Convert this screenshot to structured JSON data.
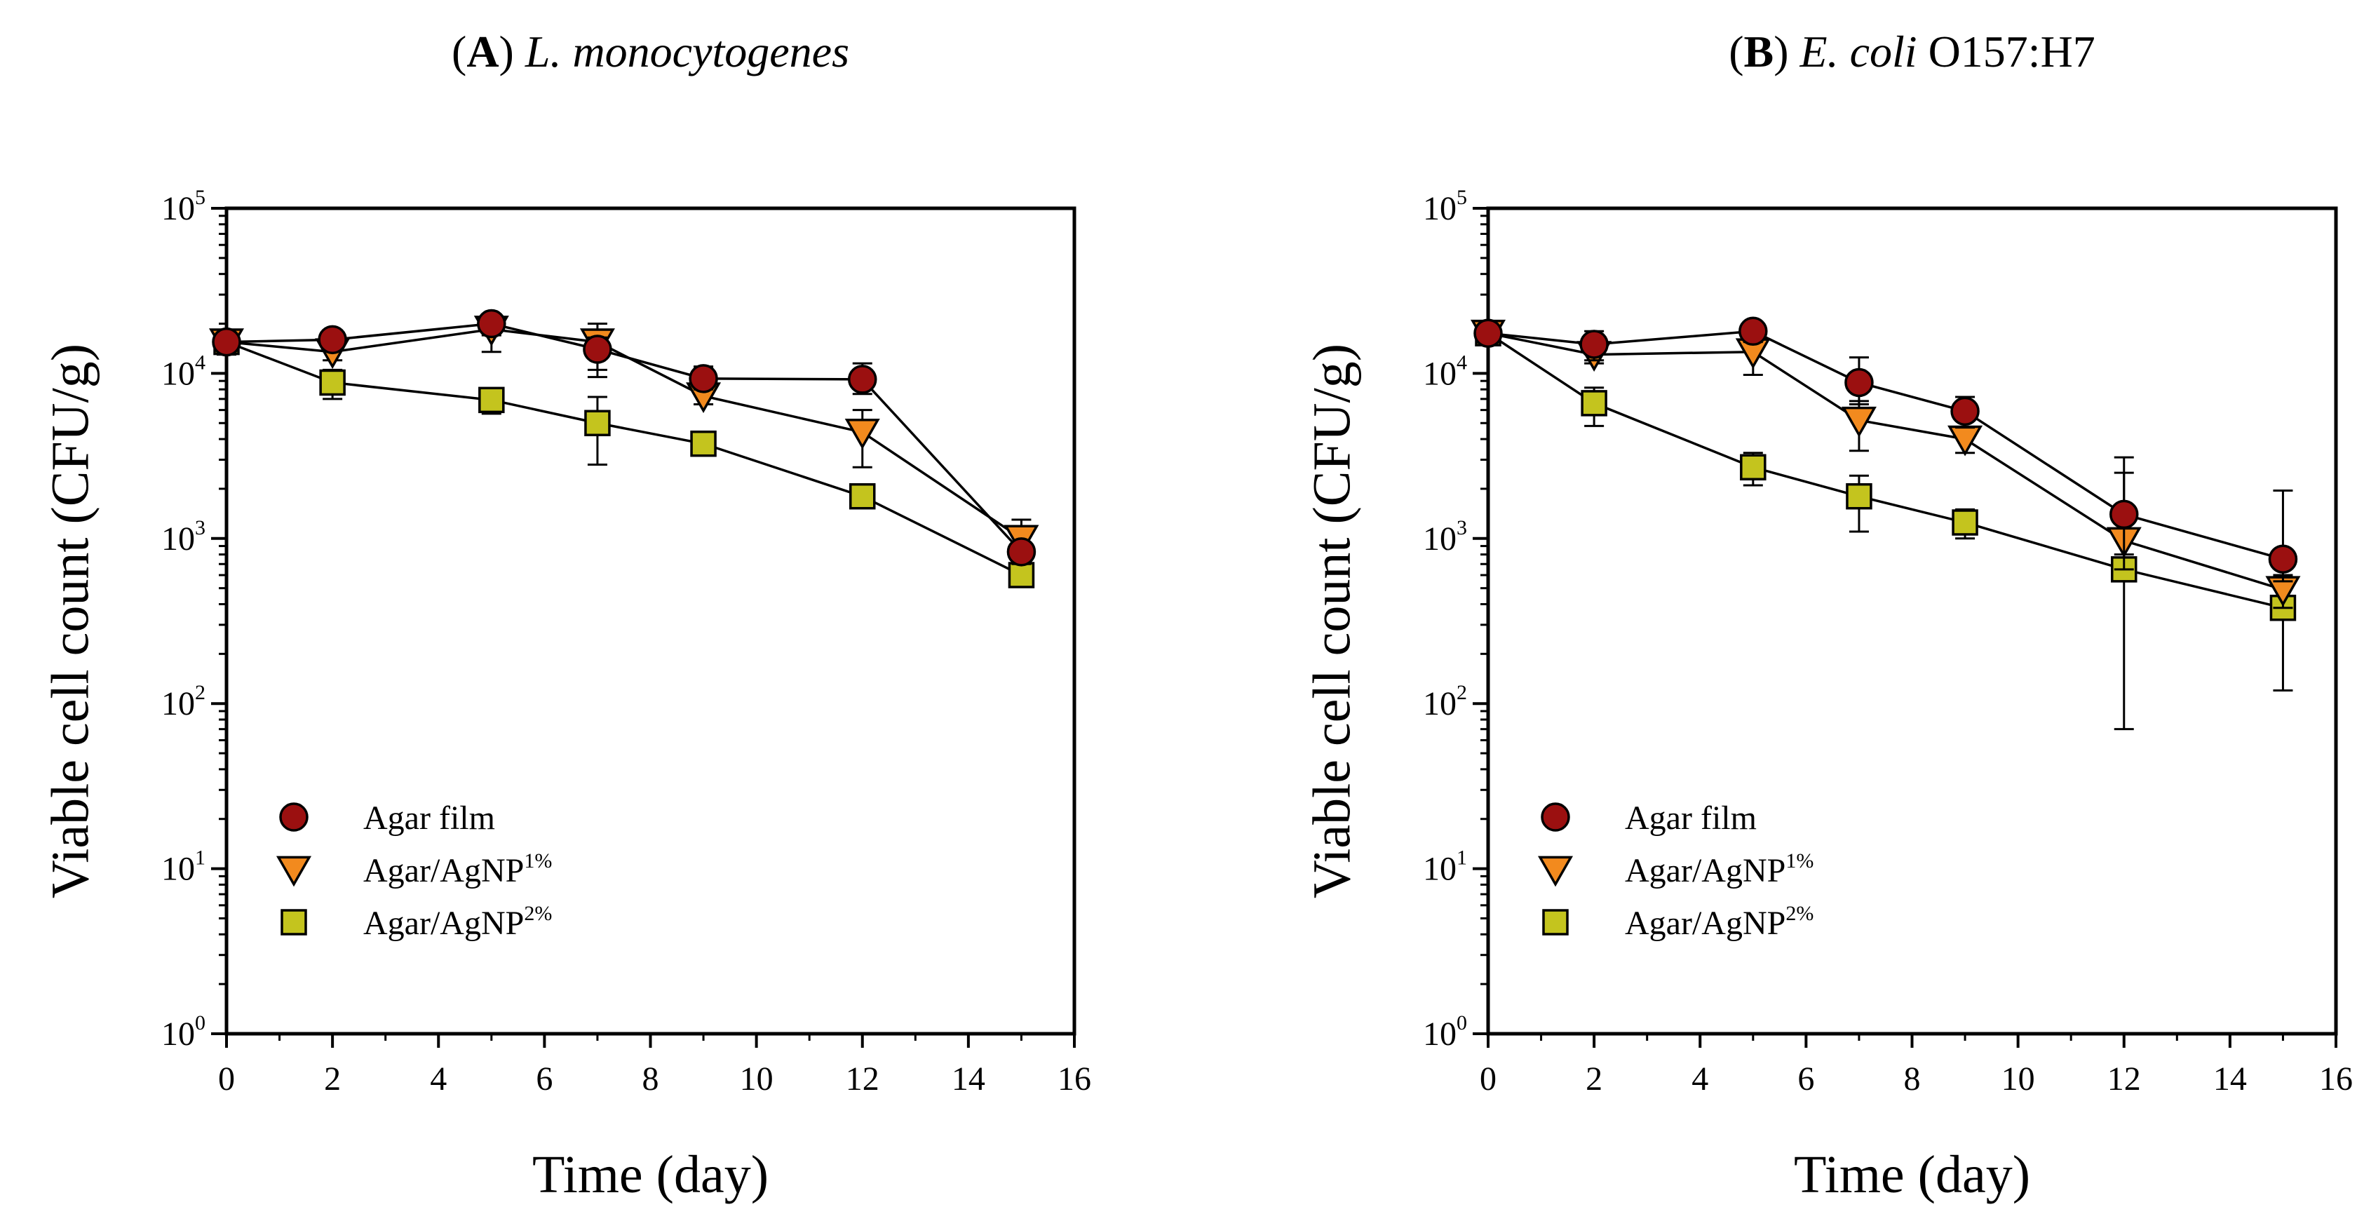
{
  "chart_data": [
    {
      "type": "scatter",
      "title": {
        "bold": "A",
        "italic": "L. monocytogenes",
        "plain": ""
      },
      "xlabel": "Time (day)",
      "ylabel": "Viable cell count (CFU/g)",
      "xlim": [
        0,
        16
      ],
      "xticks": [
        0,
        2,
        4,
        6,
        8,
        10,
        12,
        14,
        16
      ],
      "ylim": [
        1,
        100000
      ],
      "yscale": "log",
      "yticks": [
        {
          "value": 1,
          "base": "10",
          "exp": "0"
        },
        {
          "value": 10,
          "base": "10",
          "exp": "1"
        },
        {
          "value": 100,
          "base": "10",
          "exp": "2"
        },
        {
          "value": 1000,
          "base": "10",
          "exp": "3"
        },
        {
          "value": 10000,
          "base": "10",
          "exp": "4"
        },
        {
          "value": 100000,
          "base": "10",
          "exp": "5"
        }
      ],
      "grid": false,
      "legend_position": "bottom-left",
      "x": [
        0,
        2,
        5,
        7,
        9,
        12,
        15
      ],
      "series": [
        {
          "name": "Agar film",
          "marker": "circle",
          "color": "#9b1010",
          "values": [
            15500,
            16000,
            20000,
            14000,
            9300,
            9200,
            830
          ],
          "err_low": [
            13000,
            14000,
            17000,
            10500,
            8000,
            7500,
            700
          ],
          "err_high": [
            17000,
            17500,
            22000,
            16500,
            11000,
            11500,
            950
          ]
        },
        {
          "name": "Agar/AgNP",
          "name_sup": "1%",
          "marker": "triangle-down",
          "color": "#f28a1e",
          "values": [
            15500,
            13500,
            18500,
            15500,
            7300,
            4400,
            1000
          ],
          "err_low": [
            13500,
            12000,
            13500,
            9500,
            6500,
            2700,
            800
          ],
          "err_high": [
            17000,
            15000,
            22000,
            20000,
            8500,
            6000,
            1300
          ]
        },
        {
          "name": "Agar/AgNP",
          "name_sup": "2%",
          "marker": "square",
          "color": "#c4c41e",
          "values": [
            15500,
            8800,
            6900,
            5000,
            3750,
            1800,
            600
          ],
          "err_low": [
            13500,
            7000,
            5700,
            2800,
            3400,
            1600,
            530
          ],
          "err_high": [
            17000,
            10500,
            8000,
            7200,
            4100,
            2000,
            680
          ]
        }
      ]
    },
    {
      "type": "scatter",
      "title": {
        "bold": "B",
        "italic": "E. coli",
        "plain": "O157:H7"
      },
      "xlabel": "Time (day)",
      "ylabel": "Viable cell count (CFU/g)",
      "xlim": [
        0,
        16
      ],
      "xticks": [
        0,
        2,
        4,
        6,
        8,
        10,
        12,
        14,
        16
      ],
      "ylim": [
        1,
        100000
      ],
      "yscale": "log",
      "yticks": [
        {
          "value": 1,
          "base": "10",
          "exp": "0"
        },
        {
          "value": 10,
          "base": "10",
          "exp": "1"
        },
        {
          "value": 100,
          "base": "10",
          "exp": "2"
        },
        {
          "value": 1000,
          "base": "10",
          "exp": "3"
        },
        {
          "value": 10000,
          "base": "10",
          "exp": "4"
        },
        {
          "value": 100000,
          "base": "10",
          "exp": "5"
        }
      ],
      "grid": false,
      "legend_position": "bottom-left",
      "x": [
        0,
        2,
        5,
        7,
        9,
        12,
        15
      ],
      "series": [
        {
          "name": "Agar film",
          "marker": "circle",
          "color": "#9b1010",
          "values": [
            17500,
            15000,
            18000,
            8800,
            5900,
            1400,
            750
          ],
          "err_low": [
            15500,
            12000,
            15500,
            6500,
            4700,
            800,
            550
          ],
          "err_high": [
            19500,
            18000,
            20500,
            12500,
            7200,
            3100,
            1950
          ]
        },
        {
          "name": "Agar/AgNP",
          "name_sup": "1%",
          "marker": "triangle-down",
          "color": "#f28a1e",
          "values": [
            17500,
            13000,
            13500,
            5200,
            4000,
            970,
            490
          ],
          "err_low": [
            15500,
            11500,
            9800,
            3400,
            3300,
            650,
            380
          ],
          "err_high": [
            19500,
            14500,
            16500,
            6800,
            4600,
            2500,
            600
          ]
        },
        {
          "name": "Agar/AgNP",
          "name_sup": "2%",
          "marker": "square",
          "color": "#c4c41e",
          "values": [
            17500,
            6600,
            2700,
            1800,
            1250,
            650,
            380
          ],
          "err_low": [
            15500,
            4800,
            2100,
            1100,
            1000,
            70,
            120
          ],
          "err_high": [
            19500,
            8200,
            3300,
            2400,
            1500,
            1300,
            520
          ]
        }
      ]
    }
  ]
}
